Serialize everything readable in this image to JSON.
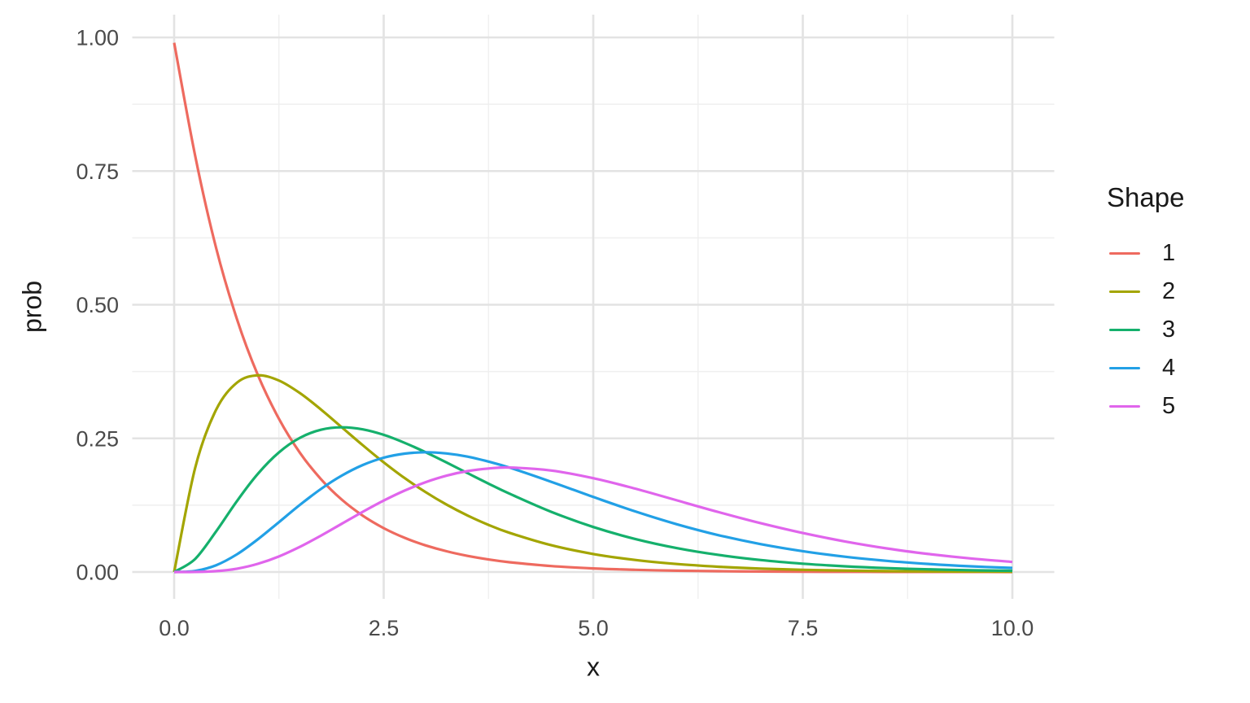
{
  "chart_data": {
    "type": "line",
    "title": "",
    "xlabel": "x",
    "ylabel": "prob",
    "xlim": [
      0,
      10
    ],
    "ylim": [
      0,
      1
    ],
    "grid": true,
    "legend_position": "right",
    "legend_title": "Shape",
    "x_tick_values": [
      0,
      2.5,
      5,
      7.5,
      10
    ],
    "x_tick_labels": [
      "0.0",
      "2.5",
      "5.0",
      "7.5",
      "10.0"
    ],
    "x_minor_ticks": [
      1.25,
      3.75,
      6.25,
      8.75
    ],
    "y_tick_values": [
      0,
      0.25,
      0.5,
      0.75,
      1
    ],
    "y_tick_labels": [
      "0.00",
      "0.25",
      "0.50",
      "0.75",
      "1.00"
    ],
    "y_minor_ticks": [
      0.125,
      0.375,
      0.625,
      0.875
    ],
    "colors": {
      "grid_major": "#e3e3e3",
      "grid_minor": "#efefef",
      "tick_label": "#4a4a4a",
      "axis_title": "#1a1a1a"
    },
    "x": [
      0,
      0.25,
      0.5,
      0.75,
      1,
      1.25,
      1.5,
      1.75,
      2,
      2.25,
      2.5,
      2.75,
      3,
      3.25,
      3.5,
      3.75,
      4,
      4.5,
      5,
      5.5,
      6,
      6.5,
      7,
      7.5,
      8,
      8.5,
      9,
      9.5,
      10
    ],
    "series": [
      {
        "name": "1",
        "color": "#ee6a5f",
        "values": [
          0.99,
          0.7788,
          0.6065,
          0.4724,
          0.3679,
          0.2865,
          0.2231,
          0.1738,
          0.1353,
          0.1054,
          0.0821,
          0.0639,
          0.0498,
          0.0388,
          0.0302,
          0.0235,
          0.0183,
          0.0111,
          0.0067,
          0.0041,
          0.0025,
          0.0015,
          0.0009,
          0.0006,
          0.0003,
          0.0002,
          0.0001,
          0.0001,
          0.0
        ]
      },
      {
        "name": "2",
        "color": "#a3a500",
        "values": [
          0.0,
          0.1947,
          0.3033,
          0.3543,
          0.3679,
          0.3581,
          0.3347,
          0.3041,
          0.2707,
          0.2371,
          0.2052,
          0.1757,
          0.1494,
          0.1261,
          0.1057,
          0.0881,
          0.0733,
          0.05,
          0.0337,
          0.0225,
          0.0149,
          0.0098,
          0.0064,
          0.0041,
          0.0027,
          0.0017,
          0.0011,
          0.0007,
          0.0005
        ]
      },
      {
        "name": "3",
        "color": "#15b06c",
        "values": [
          0.0,
          0.0243,
          0.0758,
          0.1329,
          0.1839,
          0.2238,
          0.251,
          0.2661,
          0.2707,
          0.2668,
          0.2566,
          0.2416,
          0.224,
          0.2049,
          0.185,
          0.1653,
          0.1465,
          0.1125,
          0.0842,
          0.0618,
          0.0446,
          0.0318,
          0.0223,
          0.0156,
          0.0107,
          0.0073,
          0.005,
          0.0034,
          0.0023
        ]
      },
      {
        "name": "4",
        "color": "#22a0e6",
        "values": [
          0.0,
          0.002,
          0.0126,
          0.0332,
          0.0613,
          0.0933,
          0.1255,
          0.1552,
          0.1804,
          0.2001,
          0.2138,
          0.2215,
          0.224,
          0.2218,
          0.2158,
          0.2065,
          0.1954,
          0.1687,
          0.1404,
          0.1134,
          0.0892,
          0.0687,
          0.0521,
          0.0389,
          0.0286,
          0.0208,
          0.015,
          0.0107,
          0.0076
        ]
      },
      {
        "name": "5",
        "color": "#e065ec",
        "values": [
          0.0,
          0.0001,
          0.0016,
          0.0062,
          0.0153,
          0.0291,
          0.0471,
          0.0679,
          0.0902,
          0.1126,
          0.1336,
          0.1523,
          0.168,
          0.1802,
          0.1888,
          0.1936,
          0.1954,
          0.1898,
          0.1755,
          0.156,
          0.1339,
          0.1118,
          0.0912,
          0.0729,
          0.0573,
          0.0441,
          0.0337,
          0.0254,
          0.0189
        ]
      }
    ]
  }
}
